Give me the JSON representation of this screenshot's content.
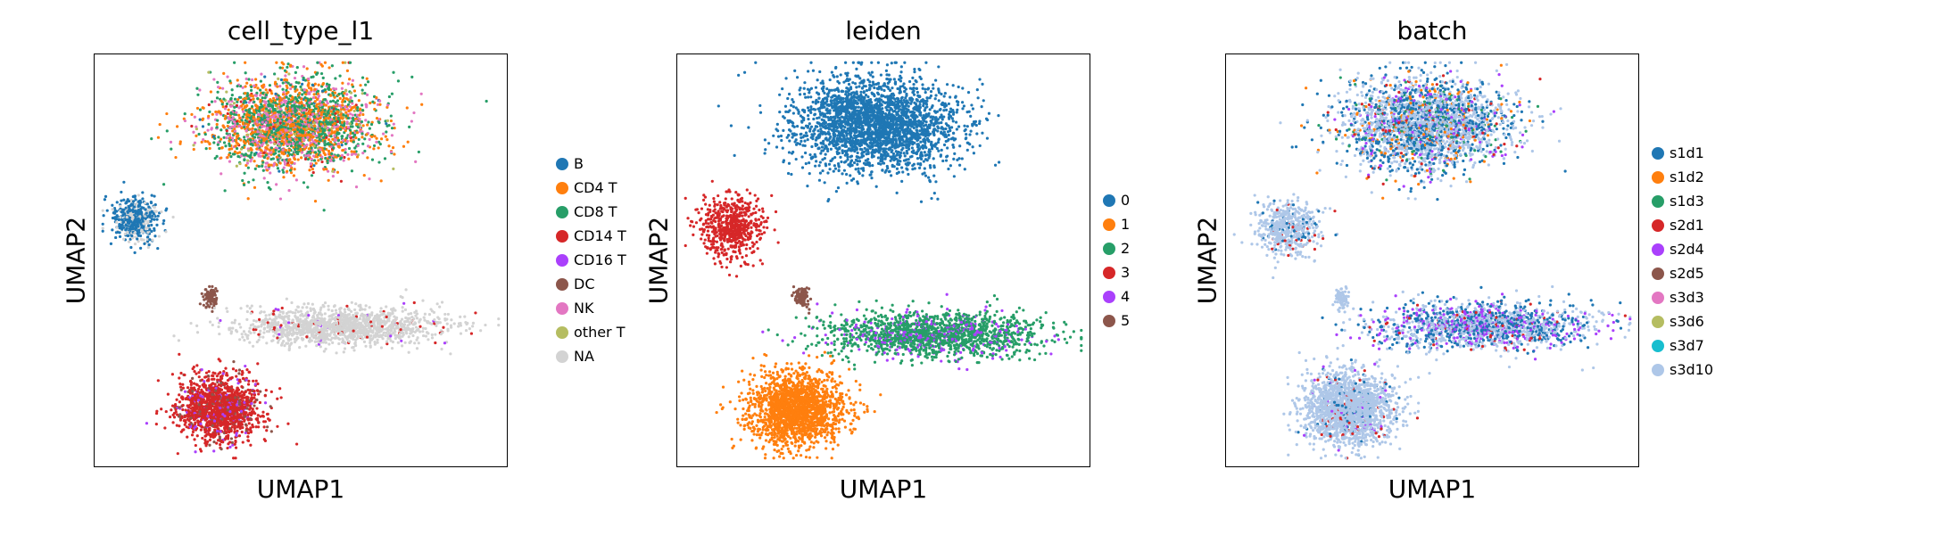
{
  "chart_data": [
    {
      "type": "scatter",
      "title": "cell_type_l1",
      "xlabel": "UMAP1",
      "ylabel": "UMAP2",
      "legend_title": "",
      "legend_position": "right",
      "categories": [
        {
          "label": "B",
          "color": "#1f77b4"
        },
        {
          "label": "CD4 T",
          "color": "#ff7f0e"
        },
        {
          "label": "CD8 T",
          "color": "#279e68"
        },
        {
          "label": "CD14 T",
          "color": "#d62728"
        },
        {
          "label": "CD16 T",
          "color": "#aa40fc"
        },
        {
          "label": "DC",
          "color": "#8c564b"
        },
        {
          "label": "NK",
          "color": "#e377c2"
        },
        {
          "label": "other T",
          "color": "#b5bd61"
        },
        {
          "label": "NA",
          "color": "#d3d3d3"
        }
      ],
      "clusters": [
        {
          "name": "upper-blob",
          "center": [
            0.48,
            0.17
          ],
          "spread": [
            0.18,
            0.1
          ],
          "n": 2600,
          "mix": {
            "CD4 T": 0.34,
            "CD8 T": 0.36,
            "NK": 0.22,
            "other T": 0.04,
            "B": 0.02,
            "CD14 T": 0.02
          }
        },
        {
          "name": "left-blob",
          "center": [
            0.1,
            0.4
          ],
          "spread": [
            0.05,
            0.05
          ],
          "n": 500,
          "mix": {
            "B": 0.7,
            "NA": 0.3
          }
        },
        {
          "name": "small-blob",
          "center": [
            0.28,
            0.59
          ],
          "spread": [
            0.015,
            0.02
          ],
          "n": 100,
          "mix": {
            "DC": 1.0
          }
        },
        {
          "name": "bridge",
          "center": [
            0.6,
            0.66
          ],
          "spread": [
            0.22,
            0.04
          ],
          "n": 1400,
          "mix": {
            "NA": 0.94,
            "CD14 T": 0.04,
            "CD16 T": 0.02
          }
        },
        {
          "name": "bottom-blob",
          "center": [
            0.3,
            0.86
          ],
          "spread": [
            0.09,
            0.07
          ],
          "n": 1500,
          "mix": {
            "CD14 T": 0.82,
            "CD16 T": 0.08,
            "DC": 0.1
          }
        }
      ]
    },
    {
      "type": "scatter",
      "title": "leiden",
      "xlabel": "UMAP1",
      "ylabel": "UMAP2",
      "legend_position": "right",
      "categories": [
        {
          "label": "0",
          "color": "#1f77b4"
        },
        {
          "label": "1",
          "color": "#ff7f0e"
        },
        {
          "label": "2",
          "color": "#279e68"
        },
        {
          "label": "3",
          "color": "#d62728"
        },
        {
          "label": "4",
          "color": "#aa40fc"
        },
        {
          "label": "5",
          "color": "#8c564b"
        }
      ],
      "clusters": [
        {
          "name": "upper-blob",
          "center": [
            0.48,
            0.17
          ],
          "spread": [
            0.18,
            0.1
          ],
          "n": 2600,
          "mix": {
            "0": 1.0
          }
        },
        {
          "name": "left-blob",
          "center": [
            0.13,
            0.42
          ],
          "spread": [
            0.07,
            0.07
          ],
          "n": 600,
          "mix": {
            "3": 1.0
          }
        },
        {
          "name": "small-blob",
          "center": [
            0.3,
            0.59
          ],
          "spread": [
            0.015,
            0.02
          ],
          "n": 100,
          "mix": {
            "5": 1.0
          }
        },
        {
          "name": "bridge",
          "center": [
            0.62,
            0.68
          ],
          "spread": [
            0.24,
            0.05
          ],
          "n": 1600,
          "mix": {
            "2": 0.82,
            "4": 0.18
          }
        },
        {
          "name": "bottom-blob",
          "center": [
            0.29,
            0.86
          ],
          "spread": [
            0.1,
            0.08
          ],
          "n": 1800,
          "mix": {
            "1": 1.0
          }
        }
      ]
    },
    {
      "type": "scatter",
      "title": "batch",
      "xlabel": "UMAP1",
      "ylabel": "UMAP2",
      "legend_position": "right",
      "categories": [
        {
          "label": "s1d1",
          "color": "#1f77b4"
        },
        {
          "label": "s1d2",
          "color": "#ff7f0e"
        },
        {
          "label": "s1d3",
          "color": "#279e68"
        },
        {
          "label": "s2d1",
          "color": "#d62728"
        },
        {
          "label": "s2d4",
          "color": "#aa40fc"
        },
        {
          "label": "s2d5",
          "color": "#8c564b"
        },
        {
          "label": "s3d3",
          "color": "#e377c2"
        },
        {
          "label": "s3d6",
          "color": "#b5bd61"
        },
        {
          "label": "s3d7",
          "color": "#17becf"
        },
        {
          "label": "s3d10",
          "color": "#aec7e8"
        }
      ],
      "clusters": [
        {
          "name": "upper-blob",
          "center": [
            0.48,
            0.17
          ],
          "spread": [
            0.18,
            0.1
          ],
          "n": 2600,
          "mix": {
            "s3d10": 0.5,
            "s1d1": 0.3,
            "s1d2": 0.08,
            "s2d4": 0.05,
            "s1d3": 0.04,
            "s2d1": 0.03
          }
        },
        {
          "name": "left-blob",
          "center": [
            0.15,
            0.42
          ],
          "spread": [
            0.07,
            0.06
          ],
          "n": 500,
          "mix": {
            "s3d10": 0.85,
            "s1d1": 0.1,
            "s2d1": 0.05
          }
        },
        {
          "name": "small-blob",
          "center": [
            0.28,
            0.59
          ],
          "spread": [
            0.015,
            0.02
          ],
          "n": 80,
          "mix": {
            "s3d10": 1.0
          }
        },
        {
          "name": "bridge",
          "center": [
            0.62,
            0.66
          ],
          "spread": [
            0.24,
            0.05
          ],
          "n": 1600,
          "mix": {
            "s3d10": 0.45,
            "s1d1": 0.33,
            "s2d4": 0.18,
            "s2d1": 0.04
          }
        },
        {
          "name": "bottom-blob",
          "center": [
            0.3,
            0.86
          ],
          "spread": [
            0.1,
            0.08
          ],
          "n": 1800,
          "mix": {
            "s3d10": 0.9,
            "s1d1": 0.05,
            "s2d1": 0.03,
            "s2d4": 0.02
          }
        }
      ]
    }
  ]
}
